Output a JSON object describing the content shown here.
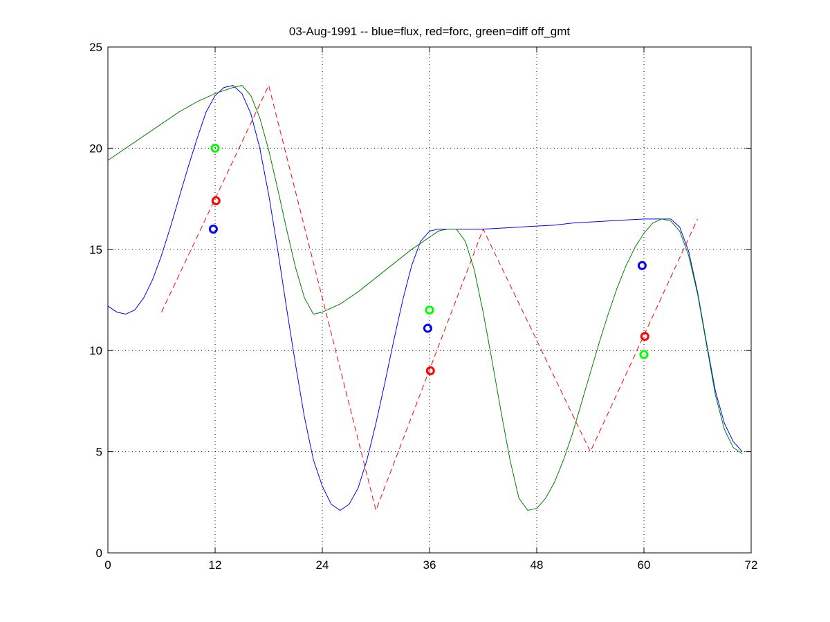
{
  "chart_data": {
    "type": "line",
    "title": "03-Aug-1991 -- blue=flux, red=forc, green=diff off_gmt",
    "xlabel": "",
    "ylabel": "",
    "xlim": [
      0,
      72
    ],
    "ylim": [
      0,
      25
    ],
    "xticks": [
      0,
      12,
      24,
      36,
      48,
      60,
      72
    ],
    "yticks": [
      0,
      5,
      10,
      15,
      20,
      25
    ],
    "grid": true,
    "legend": "none",
    "colors": {
      "blue": "#0000ff",
      "red": "#ff0000",
      "green": "#008000",
      "bright_green": "#00ff00"
    },
    "series": [
      {
        "color": "blue",
        "style": "solid",
        "x": [
          0,
          1,
          2,
          3,
          4,
          5,
          6,
          7,
          8,
          9,
          10,
          11,
          12,
          13,
          14,
          15,
          16,
          17,
          18,
          19,
          20,
          21,
          22,
          23,
          24,
          25,
          26,
          27,
          28,
          29,
          30,
          31,
          32,
          33,
          34,
          35,
          36,
          37,
          38,
          39,
          40,
          42,
          44,
          46,
          48,
          50,
          52,
          54,
          56,
          58,
          60,
          62,
          63,
          64,
          65,
          66,
          67,
          68,
          69,
          70,
          71
        ],
        "y": [
          12.2,
          11.9,
          11.8,
          12.0,
          12.6,
          13.5,
          14.7,
          16.1,
          17.6,
          19.1,
          20.5,
          21.8,
          22.6,
          23.0,
          23.1,
          22.7,
          21.7,
          20.0,
          17.7,
          15.0,
          12.1,
          9.3,
          6.7,
          4.6,
          3.3,
          2.4,
          2.1,
          2.4,
          3.2,
          4.6,
          6.4,
          8.4,
          10.5,
          12.5,
          14.2,
          15.4,
          15.9,
          16.0,
          16.0,
          16.0,
          16.0,
          16.0,
          16.05,
          16.1,
          16.15,
          16.2,
          16.3,
          16.35,
          16.4,
          16.45,
          16.5,
          16.5,
          16.5,
          16.1,
          14.9,
          12.9,
          10.4,
          8.0,
          6.4,
          5.5,
          5.0
        ]
      },
      {
        "color": "red",
        "style": "dashed",
        "x": [
          6,
          18,
          30,
          42,
          54,
          66
        ],
        "y": [
          11.9,
          23.1,
          2.1,
          16.0,
          5.0,
          16.5
        ]
      },
      {
        "color": "green",
        "style": "solid",
        "x": [
          0,
          2,
          4,
          6,
          8,
          10,
          12,
          14,
          15,
          16,
          17,
          18,
          19,
          20,
          21,
          22,
          23,
          24,
          26,
          28,
          30,
          32,
          34,
          36,
          37,
          38,
          39,
          40,
          41,
          42,
          43,
          44,
          45,
          46,
          47,
          48,
          49,
          50,
          51,
          52,
          53,
          54,
          55,
          56,
          57,
          58,
          59,
          60,
          61,
          62,
          63,
          64,
          65,
          66,
          67,
          68,
          69,
          70,
          71
        ],
        "y": [
          19.4,
          20.0,
          20.6,
          21.2,
          21.8,
          22.3,
          22.7,
          23.0,
          23.1,
          22.6,
          21.5,
          19.9,
          18.0,
          16.0,
          14.1,
          12.6,
          11.8,
          11.9,
          12.3,
          12.9,
          13.6,
          14.3,
          15.0,
          15.6,
          15.9,
          16.0,
          16.0,
          15.4,
          14.0,
          11.9,
          9.5,
          7.0,
          4.6,
          2.7,
          2.1,
          2.2,
          2.7,
          3.5,
          4.6,
          5.9,
          7.4,
          8.9,
          10.4,
          11.8,
          13.1,
          14.2,
          15.1,
          15.8,
          16.3,
          16.5,
          16.4,
          15.9,
          14.7,
          12.8,
          10.3,
          7.8,
          6.1,
          5.2,
          4.9
        ]
      }
    ],
    "markers": [
      {
        "color": "bright_green",
        "x": 12.0,
        "y": 20.0
      },
      {
        "color": "red",
        "x": 12.1,
        "y": 17.4
      },
      {
        "color": "blue",
        "x": 11.8,
        "y": 16.0
      },
      {
        "color": "bright_green",
        "x": 36.0,
        "y": 12.0
      },
      {
        "color": "blue",
        "x": 35.8,
        "y": 11.1
      },
      {
        "color": "red",
        "x": 36.1,
        "y": 9.0
      },
      {
        "color": "blue",
        "x": 59.8,
        "y": 14.2
      },
      {
        "color": "red",
        "x": 60.1,
        "y": 10.7
      },
      {
        "color": "bright_green",
        "x": 60.0,
        "y": 9.8
      }
    ]
  }
}
